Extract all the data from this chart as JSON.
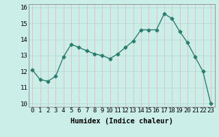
{
  "xlabel": "Humidex (Indice chaleur)",
  "ylabel": "",
  "x": [
    0,
    1,
    2,
    3,
    4,
    5,
    6,
    7,
    8,
    9,
    10,
    11,
    12,
    13,
    14,
    15,
    16,
    17,
    18,
    19,
    20,
    21,
    22,
    23
  ],
  "y": [
    12.1,
    11.5,
    11.4,
    11.7,
    12.9,
    13.7,
    13.5,
    13.3,
    13.1,
    13.0,
    12.8,
    13.1,
    13.5,
    13.9,
    14.6,
    14.6,
    14.6,
    15.6,
    15.3,
    14.5,
    13.8,
    12.9,
    12.0,
    10.0
  ],
  "line_color": "#2d7d6f",
  "marker": "D",
  "marker_size": 2.5,
  "bg_color": "#cceee8",
  "grid_color_major": "#f0c0c0",
  "grid_color_minor": "#c8e8e4",
  "ylim": [
    9.8,
    16.2
  ],
  "xlim": [
    -0.5,
    23.5
  ],
  "yticks": [
    10,
    11,
    12,
    13,
    14,
    15,
    16
  ],
  "xticks": [
    0,
    1,
    2,
    3,
    4,
    5,
    6,
    7,
    8,
    9,
    10,
    11,
    12,
    13,
    14,
    15,
    16,
    17,
    18,
    19,
    20,
    21,
    22,
    23
  ],
  "xlabel_fontsize": 7.5,
  "tick_fontsize": 6.5,
  "line_width": 1.0
}
